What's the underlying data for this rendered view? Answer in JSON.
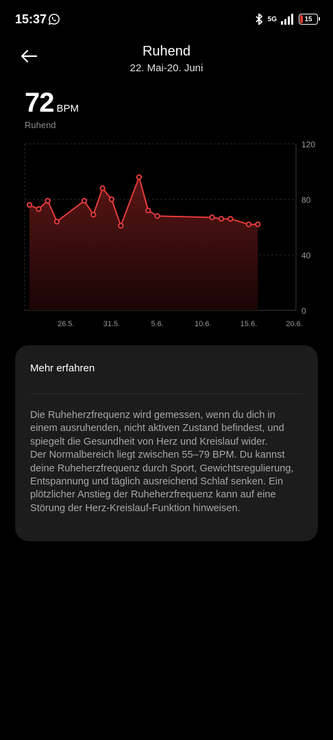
{
  "status_bar": {
    "time": "15:37",
    "network": "5G",
    "battery_level": "15",
    "icons": [
      "whatsapp-icon",
      "bluetooth-icon",
      "signal-icon",
      "battery-icon"
    ]
  },
  "header": {
    "title": "Ruhend",
    "subtitle": "22. Mai-20. Juni",
    "back_icon": "arrow-left-icon"
  },
  "summary": {
    "value": "72",
    "unit": "BPM",
    "label": "Ruhend"
  },
  "chart_data": {
    "type": "area",
    "title": "",
    "xlabel": "",
    "ylabel": "",
    "x_tick_labels": [
      "26.5.",
      "31.5.",
      "5.6.",
      "10.6.",
      "15.6.",
      "20.6."
    ],
    "y_tick_labels": [
      "120",
      "80",
      "40",
      "0"
    ],
    "ylim": [
      0,
      120
    ],
    "grid": true,
    "colors": {
      "line": "#e53b3b",
      "fill_top": "#5a1616",
      "fill_bottom": "#1a0505"
    },
    "series": [
      {
        "x": [
          "22.5.",
          "23.5.",
          "24.5.",
          "25.5.",
          "28.5.",
          "29.5.",
          "30.5.",
          "31.5.",
          "1.6.",
          "3.6.",
          "4.6.",
          "5.6.",
          "11.6.",
          "12.6.",
          "13.6.",
          "15.6.",
          "16.6."
        ],
        "values": [
          76,
          73,
          79,
          64,
          79,
          69,
          88,
          80,
          61,
          96,
          72,
          68,
          67,
          66,
          66,
          62,
          62
        ]
      }
    ]
  },
  "info": {
    "heading": "Mehr erfahren",
    "lines": [
      "Die Ruheherzfrequenz wird gemessen, wenn du dich in",
      "einem ausruhenden, nicht aktiven Zustand befindest, und",
      "spiegelt die Gesundheit von Herz und Kreislauf wider.",
      "Der Normalbereich liegt zwischen 55–79 BPM. Du kannst",
      "deine Ruheherzfrequenz durch Sport, Gewichtsregulierung,",
      "Entspannung und täglich ausreichend Schlaf senken. Ein",
      "plötzlicher Anstieg der Ruheherzfrequenz kann auf eine",
      "Störung der Herz-Kreislauf-Funktion hinweisen."
    ]
  }
}
